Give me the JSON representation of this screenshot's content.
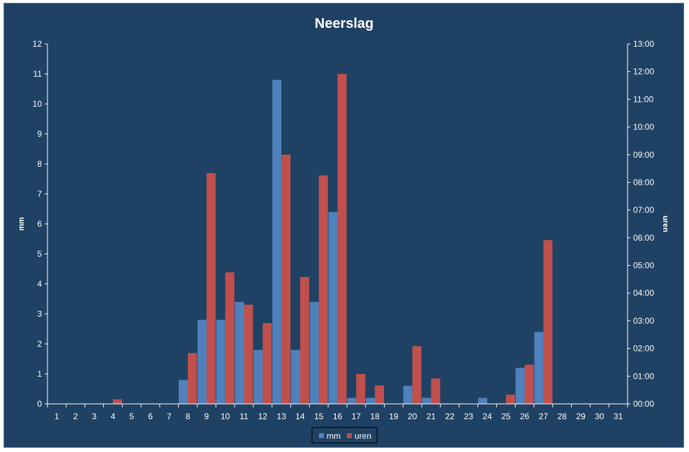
{
  "chart_data": {
    "type": "bar",
    "title": "Neerslag",
    "categories": [
      "1",
      "2",
      "3",
      "4",
      "5",
      "6",
      "7",
      "8",
      "9",
      "10",
      "11",
      "12",
      "13",
      "14",
      "15",
      "16",
      "17",
      "18",
      "19",
      "20",
      "21",
      "22",
      "23",
      "24",
      "25",
      "26",
      "27",
      "28",
      "29",
      "30",
      "31"
    ],
    "series": [
      {
        "name": "mm",
        "axis": "left",
        "color": "#4f81bd",
        "values": [
          0,
          0,
          0,
          0,
          0,
          0,
          0,
          0.8,
          2.8,
          2.8,
          3.4,
          1.8,
          10.8,
          1.8,
          3.4,
          6.4,
          0.2,
          0.2,
          0,
          0.6,
          0.2,
          0,
          0,
          0.2,
          0,
          1.2,
          2.4,
          0,
          0,
          0,
          0
        ]
      },
      {
        "name": "uren",
        "axis": "right",
        "color": "#c0504d",
        "values": [
          "00:00",
          "00:00",
          "00:00",
          "00:10",
          "00:00",
          "00:00",
          "00:00",
          "01:50",
          "08:20",
          "04:45",
          "03:35",
          "02:55",
          "09:00",
          "04:35",
          "08:15",
          "11:55",
          "01:05",
          "00:40",
          "00:00",
          "02:05",
          "00:55",
          "00:00",
          "00:00",
          "00:00",
          "00:20",
          "01:25",
          "05:55",
          "00:00",
          "00:00",
          "00:00",
          "00:00"
        ]
      }
    ],
    "ylabel": "mm",
    "ylim": [
      0,
      12
    ],
    "yticks": [
      "0",
      "1",
      "2",
      "3",
      "4",
      "5",
      "6",
      "7",
      "8",
      "9",
      "10",
      "11",
      "12"
    ],
    "y2label": "uren",
    "y2lim": [
      "00:00",
      "13:00"
    ],
    "y2ticks": [
      "00:00",
      "01:00",
      "02:00",
      "03:00",
      "04:00",
      "05:00",
      "06:00",
      "07:00",
      "08:00",
      "09:00",
      "10:00",
      "11:00",
      "12:00",
      "13:00"
    ],
    "grid": false,
    "legend": "bottom-center"
  }
}
